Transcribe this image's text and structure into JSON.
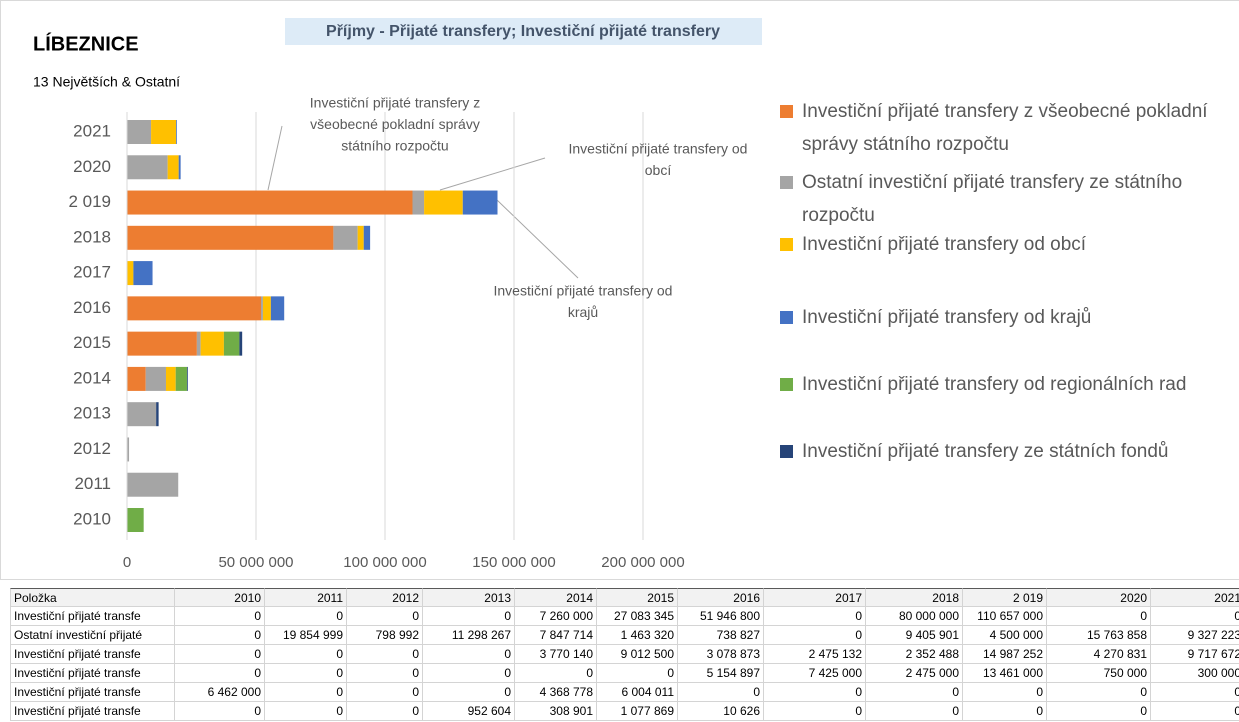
{
  "chart_data": {
    "type": "stacked-bar-horizontal",
    "heading": "LÍBEZNICE",
    "title": "Příjmy - Přijaté transfery; Investiční přijaté transfery",
    "subtitle": "13 Největších & Ostatní",
    "categories": [
      "2010",
      "2011",
      "2012",
      "2013",
      "2014",
      "2015",
      "2016",
      "2017",
      "2018",
      "2 019",
      "2020",
      "2021"
    ],
    "series": [
      {
        "name": "Investiční přijaté transfery z všeobecné pokladní správy státního rozpočtu",
        "color": "#ED7D31",
        "values": [
          0,
          0,
          0,
          0,
          7260000,
          27083345,
          51946800,
          0,
          80000000,
          110657000,
          0,
          0
        ]
      },
      {
        "name": "Ostatní investiční přijaté transfery ze státního rozpočtu",
        "color": "#A5A5A5",
        "values": [
          0,
          19854999,
          798992,
          11298267,
          7847714,
          1463320,
          738827,
          0,
          9405901,
          4500000,
          15763858,
          9327223
        ]
      },
      {
        "name": "Investiční přijaté transfery od obcí",
        "color": "#FFC000",
        "values": [
          0,
          0,
          0,
          0,
          3770140,
          9012500,
          3078873,
          2475132,
          2352488,
          14987252,
          4270831,
          9717672
        ]
      },
      {
        "name": "Investiční přijaté transfery od krajů",
        "color": "#4472C4",
        "values": [
          0,
          0,
          0,
          0,
          0,
          0,
          5154897,
          7425000,
          2475000,
          13461000,
          750000,
          300000
        ]
      },
      {
        "name": "Investiční přijaté transfery od regionálních rad",
        "color": "#70AD47",
        "values": [
          6462000,
          0,
          0,
          0,
          4368778,
          6004011,
          0,
          0,
          0,
          0,
          0,
          0
        ]
      },
      {
        "name": "Investiční přijaté transfery ze státních fondů",
        "color": "#264478",
        "values": [
          0,
          0,
          0,
          952604,
          308901,
          1077869,
          10626,
          0,
          0,
          0,
          0,
          0
        ]
      }
    ],
    "xlim": [
      0,
      200000000
    ],
    "xticks": [
      0,
      {
        "value": 50000000,
        "label": "50 000 000"
      },
      {
        "value": 100000000,
        "label": "100 000 000"
      },
      {
        "value": 150000000,
        "label": "150 000 000"
      },
      {
        "value": 200000000,
        "label": "200 000 000"
      }
    ],
    "grid": true,
    "legend": "right",
    "annotations": [
      {
        "lines": [
          "Investiční přijaté transfery z",
          "všeobecné pokladní správy",
          "státního rozpočtu"
        ]
      },
      {
        "lines": [
          "Investiční přijaté transfery od",
          "obcí"
        ]
      },
      {
        "lines": [
          "Investiční přijaté transfery od",
          "krajů"
        ]
      }
    ]
  },
  "table": {
    "header": [
      "Položka",
      "2010",
      "2011",
      "2012",
      "2013",
      "2014",
      "2015",
      "2016",
      "2017",
      "2018",
      "2 019",
      "2020",
      "2021"
    ],
    "rows": [
      [
        "Investiční přijaté transfe",
        "0",
        "0",
        "0",
        "0",
        "7 260 000",
        "27 083 345",
        "51 946 800",
        "0",
        "80 000 000",
        "110 657 000",
        "0",
        "0"
      ],
      [
        "Ostatní investiční přijaté",
        "0",
        "19 854 999",
        "798 992",
        "11 298 267",
        "7 847 714",
        "1 463 320",
        "738 827",
        "0",
        "9 405 901",
        "4 500 000",
        "15 763 858",
        "9 327 223"
      ],
      [
        "Investiční přijaté transfe",
        "0",
        "0",
        "0",
        "0",
        "3 770 140",
        "9 012 500",
        "3 078 873",
        "2 475 132",
        "2 352 488",
        "14 987 252",
        "4 270 831",
        "9 717 672"
      ],
      [
        "Investiční přijaté transfe",
        "0",
        "0",
        "0",
        "0",
        "0",
        "0",
        "5 154 897",
        "7 425 000",
        "2 475 000",
        "13 461 000",
        "750 000",
        "300 000"
      ],
      [
        "Investiční přijaté transfe",
        "6 462 000",
        "0",
        "0",
        "0",
        "4 368 778",
        "6 004 011",
        "0",
        "0",
        "0",
        "0",
        "0",
        "0"
      ],
      [
        "Investiční přijaté transfe",
        "0",
        "0",
        "0",
        "952 604",
        "308 901",
        "1 077 869",
        "10 626",
        "0",
        "0",
        "0",
        "0",
        "0"
      ]
    ]
  }
}
